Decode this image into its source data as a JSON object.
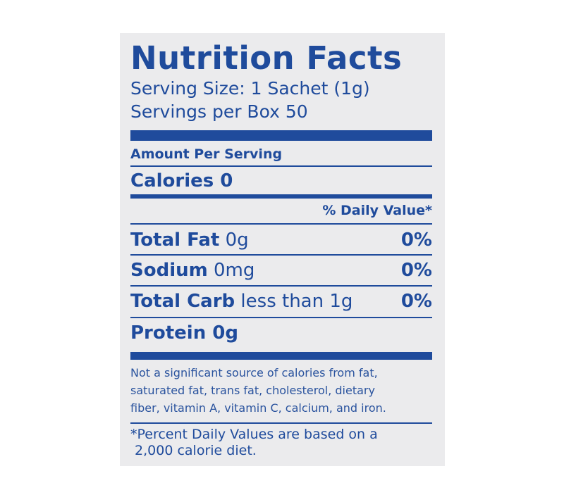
{
  "label": {
    "title": "Nutrition Facts",
    "serving_size": "Serving Size: 1 Sachet (1g)",
    "servings_per_box": "Servings per Box 50",
    "amount_per_serving": "Amount Per Serving",
    "calories": "Calories 0",
    "daily_value_header": "% Daily Value*",
    "nutrients": [
      {
        "name": "Total Fat",
        "amount": "0g",
        "dv": "0%"
      },
      {
        "name": "Sodium",
        "amount": "0mg",
        "dv": "0%"
      },
      {
        "name": "Total Carb",
        "amount": "less than 1g",
        "dv": "0%"
      },
      {
        "name": "Protein 0g",
        "amount": "",
        "dv": ""
      }
    ],
    "footnote_lines": [
      "Not a significant source of calories from fat,",
      "saturated fat, trans fat, cholesterol, dietary",
      "fiber, vitamin A, vitamin C, calcium, and iron."
    ],
    "dv_note_lines": [
      "*Percent Daily Values are based on a",
      " 2,000 calorie diet."
    ]
  },
  "colors": {
    "ink": "#1f4b9c",
    "panel": "#ebebed"
  }
}
